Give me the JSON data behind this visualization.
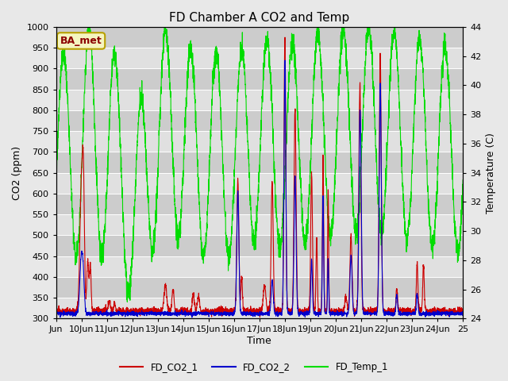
{
  "title": "FD Chamber A CO2 and Temp",
  "xlabel": "Time",
  "ylabel_left": "CO2 (ppm)",
  "ylabel_right": "Temperature (C)",
  "ylim_left": [
    300,
    1000
  ],
  "ylim_right": [
    24,
    44
  ],
  "yticks_left": [
    300,
    350,
    400,
    450,
    500,
    550,
    600,
    650,
    700,
    750,
    800,
    850,
    900,
    950,
    1000
  ],
  "yticks_right": [
    24,
    26,
    28,
    30,
    32,
    34,
    36,
    38,
    40,
    42,
    44
  ],
  "xtick_labels": [
    "Jun",
    "10Jun",
    "11Jun",
    "12Jun",
    "13Jun",
    "14Jun",
    "15Jun",
    "16Jun",
    "17Jun",
    "18Jun",
    "19Jun",
    "20Jun",
    "21Jun",
    "22Jun",
    "23Jun",
    "24Jun",
    "25"
  ],
  "color_co2_1": "#cc0000",
  "color_co2_2": "#0000cc",
  "color_temp": "#00dd00",
  "legend_label_1": "FD_CO2_1",
  "legend_label_2": "FD_CO2_2",
  "legend_label_3": "FD_Temp_1",
  "annotation_text": "BA_met",
  "fig_bg_color": "#e8e8e8",
  "plot_bg_color": "#d4d4d4",
  "band_light": "#e0e0e0",
  "band_dark": "#cccccc",
  "grid_color": "#ffffff",
  "title_fontsize": 11,
  "axis_fontsize": 9,
  "tick_fontsize": 8,
  "linewidth": 0.8
}
